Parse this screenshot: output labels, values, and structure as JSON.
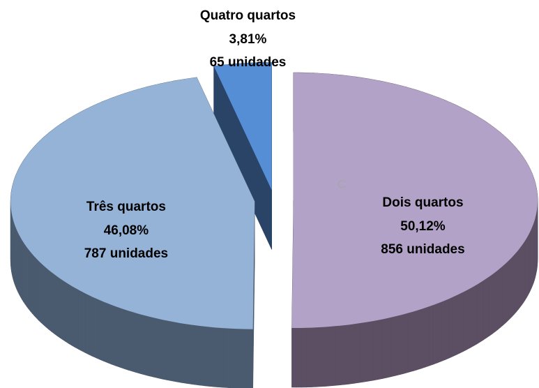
{
  "chart_data": {
    "type": "pie3d",
    "categories": [
      "Dois quartos",
      "Três quartos",
      "Quatro quartos"
    ],
    "values": [
      50.12,
      46.08,
      3.81
    ],
    "value_labels": [
      "50,12%",
      "46,08%",
      "3,81%"
    ],
    "count_labels": [
      "856 unidades",
      "787 unidades",
      "65 unidades"
    ],
    "colors": [
      "#b3a2c7",
      "#95b3d7",
      "#558ed5"
    ],
    "side_colors": [
      "#5c4f63",
      "#4b5b6f",
      "#2a4468"
    ],
    "annotation": "C"
  }
}
